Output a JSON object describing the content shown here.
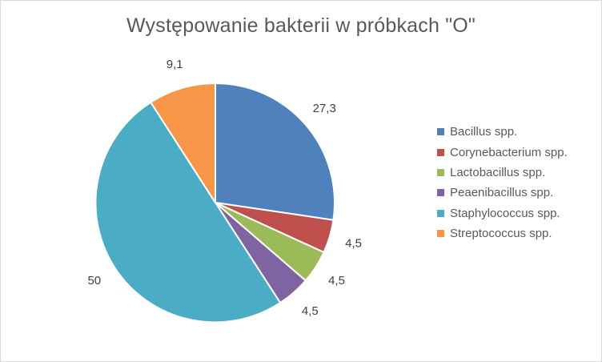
{
  "chart_data": {
    "type": "pie",
    "title": "Występowanie bakterii w próbkach \"O\"",
    "categories": [
      "Bacillus spp.",
      "Corynebacterium spp.",
      "Lactobacillus spp.",
      "Peaenibacillus spp.",
      "Staphylococcus spp.",
      "Streptococcus spp."
    ],
    "values": [
      27.3,
      4.5,
      4.5,
      4.5,
      50,
      9.1
    ],
    "data_labels": [
      "27,3",
      "4,5",
      "4,5",
      "4,5",
      "50",
      "9,1"
    ],
    "colors": [
      "#4f81bd",
      "#c0504d",
      "#9bbb59",
      "#8064a2",
      "#4bacc6",
      "#f79646"
    ],
    "legend_position": "right",
    "start": "12 o'clock, clockwise"
  }
}
